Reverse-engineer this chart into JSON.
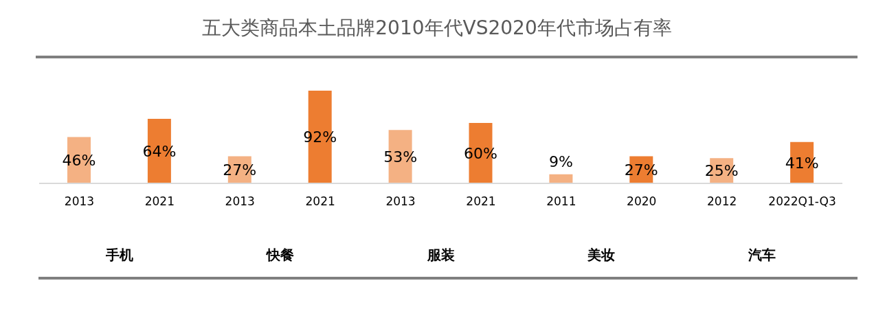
{
  "chart_data": {
    "type": "bar",
    "title": "五大类商品本土品牌2010年代VS2020年代市场占有率",
    "categories": [
      "2013",
      "2021",
      "2013",
      "2021",
      "2013",
      "2021",
      "2011",
      "2020",
      "2012",
      "2022Q1-Q3"
    ],
    "values": [
      46,
      64,
      27,
      92,
      53,
      60,
      9,
      27,
      25,
      41
    ],
    "colors": [
      "#f4b183",
      "#ed7d31",
      "#f4b183",
      "#ed7d31",
      "#f4b183",
      "#ed7d31",
      "#f4b183",
      "#ed7d31",
      "#f4b183",
      "#ed7d31"
    ],
    "value_labels": [
      "46%",
      "64%",
      "27%",
      "92%",
      "53%",
      "60%",
      "9%",
      "27%",
      "25%",
      "41%"
    ],
    "annotations": [
      "手机",
      "快餐",
      "服装",
      "美妆",
      "汽车"
    ],
    "grid": false,
    "legend": false
  }
}
